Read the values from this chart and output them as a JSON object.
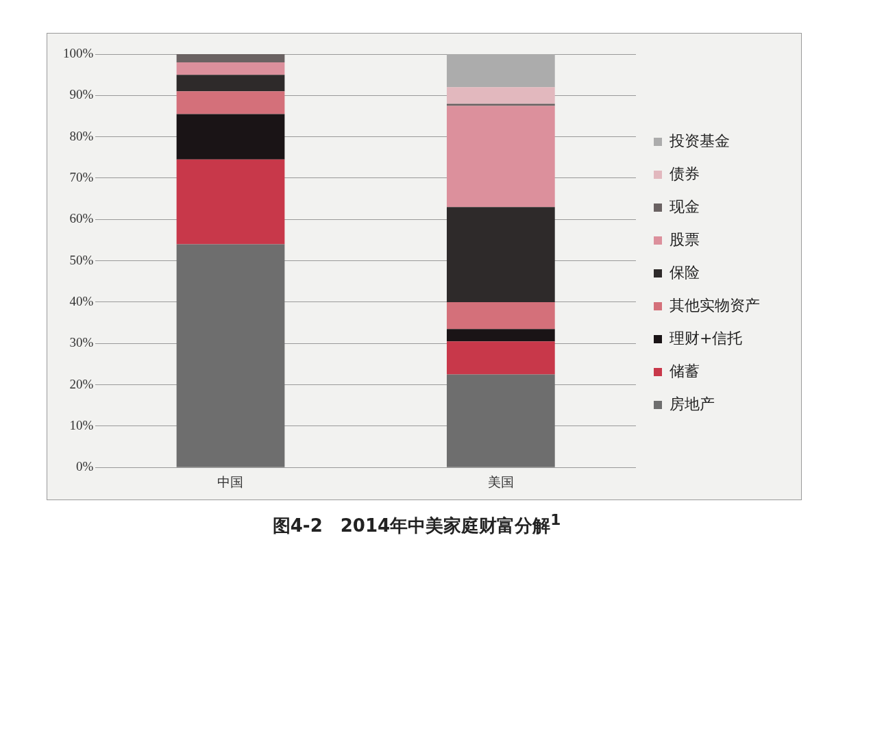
{
  "chart_data": {
    "type": "bar",
    "title": "图4-2　2014年中美家庭财富分解$^{1}$",
    "categories": [
      "中国",
      "美国"
    ],
    "stacked": true,
    "ylim": [
      0,
      100
    ],
    "yticks": [
      {
        "value": 0,
        "label": "0%"
      },
      {
        "value": 10,
        "label": "10%"
      },
      {
        "value": 20,
        "label": "20%"
      },
      {
        "value": 30,
        "label": "30%"
      },
      {
        "value": 40,
        "label": "40%"
      },
      {
        "value": 50,
        "label": "50%"
      },
      {
        "value": 60,
        "label": "60%"
      },
      {
        "value": 70,
        "label": "70%"
      },
      {
        "value": 80,
        "label": "80%"
      },
      {
        "value": 90,
        "label": "90%"
      },
      {
        "value": 100,
        "label": "100%"
      }
    ],
    "grid": "y",
    "legend": "right",
    "series": [
      {
        "name": "房地产",
        "color": "#6e6e6e",
        "values": [
          54,
          22.5
        ]
      },
      {
        "name": "储蓄",
        "color": "#c8384a",
        "values": [
          20.5,
          8
        ]
      },
      {
        "name": "理财+信托",
        "color": "#1a1416",
        "values": [
          11,
          3
        ]
      },
      {
        "name": "其他实物资产",
        "color": "#d4707a",
        "values": [
          5.5,
          6.5
        ]
      },
      {
        "name": "保险",
        "color": "#2e2a2a",
        "values": [
          4,
          23
        ]
      },
      {
        "name": "股票",
        "color": "#dc909c",
        "values": [
          3,
          24.5
        ]
      },
      {
        "name": "现金",
        "color": "#6a6262",
        "values": [
          2,
          0.5
        ]
      },
      {
        "name": "债券",
        "color": "#e2b8be",
        "values": [
          0,
          4
        ]
      },
      {
        "name": "投资基金",
        "color": "#acacac",
        "values": [
          0,
          8
        ]
      }
    ]
  }
}
